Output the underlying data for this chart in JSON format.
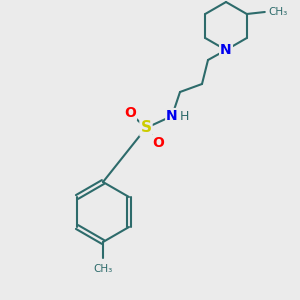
{
  "bg_color": "#ebebeb",
  "bond_color": "#2d6b6b",
  "bond_width": 1.5,
  "atom_N_color": "#0000ee",
  "atom_S_color": "#cccc00",
  "atom_O_color": "#ff0000",
  "font_size": 10,
  "figsize": [
    3.0,
    3.0
  ],
  "dpi": 100,
  "xlim": [
    0,
    300
  ],
  "ylim": [
    0,
    300
  ]
}
